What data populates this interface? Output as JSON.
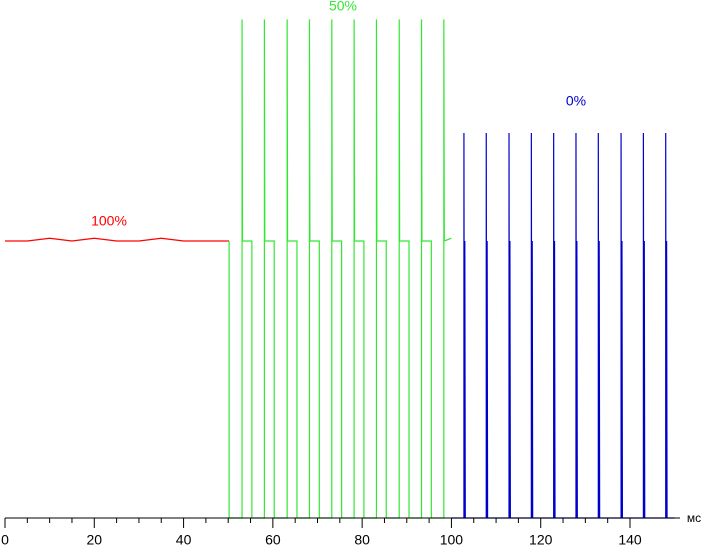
{
  "chart_data": {
    "type": "line",
    "x_label": "мс",
    "xlim": [
      0,
      151.2
    ],
    "ylim": [
      0,
      1.87
    ],
    "xticks": [
      0,
      20,
      40,
      60,
      80,
      100,
      120,
      140
    ],
    "series": [
      {
        "name": "100%",
        "color": "#ff0000",
        "x": [
          0,
          5,
          10,
          15,
          20,
          25,
          30,
          35,
          40,
          45,
          50.2
        ],
        "values": [
          1,
          1,
          1.01,
          1,
          1.01,
          1,
          1,
          1.01,
          1,
          1,
          1
        ]
      },
      {
        "name": "50%",
        "color": "#33e633",
        "x": [
          50.2,
          50.2,
          53.1,
          53.1,
          53.2,
          55.3,
          55.3,
          58.1,
          58.1,
          58.2,
          60.3,
          60.3,
          63.2,
          63.2,
          63.3,
          65.4,
          65.4,
          68.2,
          68.2,
          68.3,
          70.4,
          70.4,
          73.2,
          73.2,
          73.3,
          75.4,
          75.4,
          78.2,
          78.2,
          78.3,
          80.4,
          80.4,
          83.2,
          83.2,
          83.3,
          85.4,
          85.4,
          88.3,
          88.3,
          88.4,
          90.5,
          90.5,
          93.3,
          93.3,
          93.4,
          95.5,
          95.5,
          98.3,
          98.3,
          98.4,
          100
        ],
        "values": [
          1,
          0,
          0,
          1.8,
          1,
          1,
          0,
          0,
          1.8,
          1,
          1,
          0,
          0,
          1.8,
          1,
          1,
          0,
          0,
          1.8,
          1,
          1,
          0,
          0,
          1.8,
          1,
          1,
          0,
          0,
          1.8,
          1,
          1,
          0,
          0,
          1.8,
          1,
          1,
          0,
          0,
          1.8,
          1,
          1,
          0,
          0,
          1.8,
          1,
          1,
          0,
          0,
          1.8,
          1,
          1.01
        ]
      },
      {
        "name": "0%",
        "color": "#0000cc",
        "x": [
          100,
          102.8,
          102.8,
          102.9,
          103.0,
          103.1,
          107.8,
          107.8,
          107.9,
          108.0,
          108.1,
          112.9,
          112.9,
          113.0,
          113.1,
          113.2,
          117.9,
          117.9,
          118.0,
          118.1,
          118.2,
          122.9,
          122.9,
          123.0,
          123.1,
          123.2,
          127.9,
          127.9,
          128.0,
          128.1,
          128.2,
          132.9,
          132.9,
          133.0,
          133.1,
          133.2,
          138.0,
          138.0,
          138.1,
          138.2,
          138.3,
          143.0,
          143.0,
          143.1,
          143.2,
          143.3,
          148.0,
          148.0,
          148.1,
          148.2,
          148.3,
          150
        ],
        "values": [
          0,
          0,
          1.39,
          0,
          1,
          0,
          0,
          1.39,
          0,
          1,
          0,
          0,
          1.39,
          0,
          1,
          0,
          0,
          1.39,
          0,
          1,
          0,
          0,
          1.39,
          0,
          1,
          0,
          0,
          1.39,
          0,
          1,
          0,
          0,
          1.39,
          0,
          1,
          0,
          0,
          1.39,
          0,
          1,
          0,
          0,
          1.39,
          0,
          1,
          0,
          0,
          1.39,
          0,
          1,
          0,
          0
        ]
      }
    ]
  }
}
